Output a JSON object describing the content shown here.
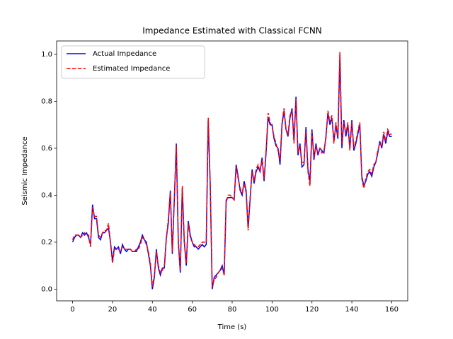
{
  "chart_data": {
    "type": "line",
    "title": "Impedance Estimated with Classical FCNN",
    "xlabel": "Time (s)",
    "ylabel": "Seismic Impedance",
    "x": [
      0,
      1,
      2,
      3,
      4,
      5,
      6,
      7,
      8,
      9,
      10,
      11,
      12,
      13,
      14,
      15,
      16,
      17,
      18,
      19,
      20,
      21,
      22,
      23,
      24,
      25,
      26,
      27,
      28,
      29,
      30,
      31,
      32,
      33,
      34,
      35,
      36,
      37,
      38,
      39,
      40,
      41,
      42,
      43,
      44,
      45,
      46,
      47,
      48,
      49,
      50,
      51,
      52,
      53,
      54,
      55,
      56,
      57,
      58,
      59,
      60,
      61,
      62,
      63,
      64,
      65,
      66,
      67,
      68,
      69,
      70,
      71,
      72,
      73,
      74,
      75,
      76,
      77,
      78,
      79,
      80,
      81,
      82,
      83,
      84,
      85,
      86,
      87,
      88,
      89,
      90,
      91,
      92,
      93,
      94,
      95,
      96,
      97,
      98,
      99,
      100,
      101,
      102,
      103,
      104,
      105,
      106,
      107,
      108,
      109,
      110,
      111,
      112,
      113,
      114,
      115,
      116,
      117,
      118,
      119,
      120,
      121,
      122,
      123,
      124,
      125,
      126,
      127,
      128,
      129,
      130,
      131,
      132,
      133,
      134,
      135,
      136,
      137,
      138,
      139,
      140,
      141,
      142,
      143,
      144,
      145,
      146,
      147,
      148,
      149,
      150,
      151,
      152,
      153,
      154,
      155,
      156,
      157,
      158,
      159,
      160
    ],
    "series": [
      {
        "name": "Actual Impedance",
        "color": "#0000ff",
        "linestyle": "solid",
        "values": [
          0.2,
          0.22,
          0.23,
          0.23,
          0.22,
          0.24,
          0.23,
          0.24,
          0.22,
          0.19,
          0.36,
          0.3,
          0.3,
          0.22,
          0.21,
          0.24,
          0.24,
          0.25,
          0.26,
          0.2,
          0.12,
          0.18,
          0.17,
          0.18,
          0.15,
          0.19,
          0.17,
          0.16,
          0.17,
          0.17,
          0.16,
          0.16,
          0.16,
          0.18,
          0.2,
          0.23,
          0.21,
          0.2,
          0.15,
          0.1,
          0.0,
          0.05,
          0.17,
          0.09,
          0.06,
          0.09,
          0.09,
          0.22,
          0.28,
          0.42,
          0.15,
          0.38,
          0.62,
          0.2,
          0.07,
          0.43,
          0.2,
          0.1,
          0.29,
          0.23,
          0.2,
          0.18,
          0.18,
          0.17,
          0.18,
          0.19,
          0.18,
          0.19,
          0.72,
          0.45,
          0.0,
          0.05,
          0.06,
          0.07,
          0.08,
          0.1,
          0.06,
          0.38,
          0.39,
          0.39,
          0.39,
          0.38,
          0.53,
          0.48,
          0.42,
          0.4,
          0.46,
          0.42,
          0.26,
          0.38,
          0.51,
          0.45,
          0.5,
          0.52,
          0.5,
          0.56,
          0.46,
          0.58,
          0.73,
          0.7,
          0.7,
          0.64,
          0.61,
          0.6,
          0.53,
          0.7,
          0.76,
          0.68,
          0.65,
          0.73,
          0.77,
          0.63,
          0.82,
          0.57,
          0.62,
          0.52,
          0.53,
          0.69,
          0.51,
          0.46,
          0.68,
          0.55,
          0.62,
          0.57,
          0.6,
          0.59,
          0.58,
          0.65,
          0.75,
          0.7,
          0.73,
          0.63,
          0.7,
          0.64,
          1.0,
          0.6,
          0.72,
          0.65,
          0.7,
          0.6,
          0.72,
          0.59,
          0.62,
          0.66,
          0.7,
          0.48,
          0.44,
          0.46,
          0.49,
          0.5,
          0.48,
          0.52,
          0.54,
          0.58,
          0.63,
          0.6,
          0.66,
          0.62,
          0.67,
          0.65,
          0.65
        ]
      },
      {
        "name": "Estimated Impedance",
        "color": "#ff0000",
        "linestyle": "dashed",
        "values": [
          0.21,
          0.23,
          0.23,
          0.23,
          0.22,
          0.23,
          0.24,
          0.23,
          0.23,
          0.18,
          0.35,
          0.31,
          0.31,
          0.23,
          0.22,
          0.24,
          0.25,
          0.25,
          0.28,
          0.2,
          0.11,
          0.17,
          0.17,
          0.17,
          0.16,
          0.18,
          0.17,
          0.17,
          0.17,
          0.17,
          0.16,
          0.16,
          0.17,
          0.17,
          0.19,
          0.22,
          0.21,
          0.19,
          0.16,
          0.11,
          0.01,
          0.06,
          0.16,
          0.1,
          0.07,
          0.08,
          0.1,
          0.21,
          0.3,
          0.41,
          0.16,
          0.39,
          0.61,
          0.21,
          0.08,
          0.44,
          0.21,
          0.11,
          0.28,
          0.22,
          0.2,
          0.19,
          0.18,
          0.18,
          0.19,
          0.2,
          0.2,
          0.2,
          0.73,
          0.44,
          0.01,
          0.04,
          0.05,
          0.07,
          0.08,
          0.09,
          0.06,
          0.37,
          0.4,
          0.4,
          0.39,
          0.38,
          0.52,
          0.47,
          0.43,
          0.41,
          0.45,
          0.41,
          0.25,
          0.39,
          0.5,
          0.46,
          0.51,
          0.53,
          0.5,
          0.55,
          0.47,
          0.59,
          0.75,
          0.71,
          0.69,
          0.65,
          0.62,
          0.59,
          0.55,
          0.71,
          0.77,
          0.68,
          0.66,
          0.74,
          0.76,
          0.62,
          0.81,
          0.58,
          0.61,
          0.54,
          0.54,
          0.67,
          0.5,
          0.44,
          0.67,
          0.56,
          0.61,
          0.58,
          0.6,
          0.58,
          0.59,
          0.64,
          0.76,
          0.71,
          0.74,
          0.62,
          0.71,
          0.65,
          1.01,
          0.62,
          0.71,
          0.66,
          0.71,
          0.59,
          0.71,
          0.6,
          0.63,
          0.67,
          0.71,
          0.47,
          0.43,
          0.47,
          0.5,
          0.51,
          0.49,
          0.53,
          0.54,
          0.59,
          0.62,
          0.61,
          0.67,
          0.63,
          0.68,
          0.66,
          0.66
        ]
      }
    ],
    "xlim": [
      -8,
      168
    ],
    "ylim": [
      -0.05,
      1.057
    ],
    "xticks": [
      0,
      20,
      40,
      60,
      80,
      100,
      120,
      140,
      160
    ],
    "yticks": [
      {
        "value": 0,
        "label": "0.0"
      },
      {
        "value": 0.2,
        "label": "0.2"
      },
      {
        "value": 0.4,
        "label": "0.4"
      },
      {
        "value": 0.6,
        "label": "0.6"
      },
      {
        "value": 0.8,
        "label": "0.8"
      },
      {
        "value": 1.0,
        "label": "1.0"
      }
    ],
    "legend": "upper left"
  }
}
